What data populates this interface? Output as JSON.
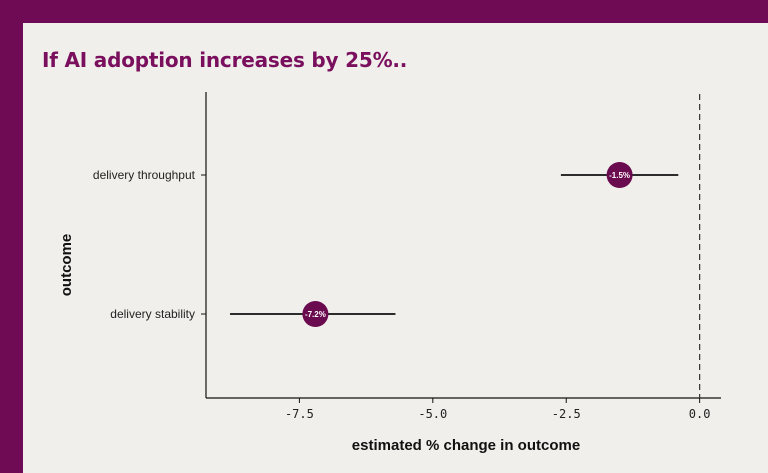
{
  "colors": {
    "frame": "#6f0a55",
    "background": "#f0efeb",
    "title": "#7a0f5e",
    "marker": "#6a0a4f",
    "marker_text": "#ffffff",
    "line": "#111111"
  },
  "chart_data": {
    "type": "scatter",
    "title": "If AI adoption increases by 25%..",
    "xlabel": "estimated % change in outcome",
    "ylabel": "outcome",
    "xlim": [
      -9.25,
      0.4
    ],
    "x_ticks": [
      -7.5,
      -5.0,
      -2.5,
      0.0
    ],
    "x_tick_labels": [
      "-7.5",
      "-5.0",
      "-2.5",
      "0.0"
    ],
    "reference_line": {
      "x": 0.0,
      "style": "dashed"
    },
    "grid": false,
    "points": [
      {
        "category": "delivery throughput",
        "estimate": -1.5,
        "label": "-1.5%",
        "ci_low": -2.6,
        "ci_high": -0.4
      },
      {
        "category": "delivery stability",
        "estimate": -7.2,
        "label": "-7.2%",
        "ci_low": -8.8,
        "ci_high": -5.7
      }
    ]
  }
}
